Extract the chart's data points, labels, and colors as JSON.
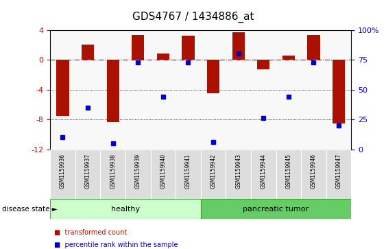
{
  "title": "GDS4767 / 1434886_at",
  "samples": [
    "GSM1159936",
    "GSM1159937",
    "GSM1159938",
    "GSM1159939",
    "GSM1159940",
    "GSM1159941",
    "GSM1159942",
    "GSM1159943",
    "GSM1159944",
    "GSM1159945",
    "GSM1159946",
    "GSM1159947"
  ],
  "bar_values": [
    -7.5,
    2.0,
    -8.3,
    3.3,
    0.8,
    3.2,
    -4.5,
    3.7,
    -1.3,
    0.6,
    3.3,
    -8.5
  ],
  "dot_values": [
    10,
    35,
    5,
    73,
    44,
    73,
    6,
    80,
    26,
    44,
    73,
    20
  ],
  "healthy_count": 6,
  "tumor_count": 6,
  "ylim_left": [
    -12,
    4
  ],
  "ylim_right": [
    0,
    100
  ],
  "yticks_left": [
    -12,
    -8,
    -4,
    0,
    4
  ],
  "yticks_right": [
    0,
    25,
    50,
    75,
    100
  ],
  "bar_color": "#AA1100",
  "dot_color": "#0000CC",
  "hline_color": "#AA1100",
  "grid_color": "#000000",
  "tick_label_area_color": "#DDDDDD",
  "healthy_color_light": "#CCFFCC",
  "tumor_color_dark": "#66CC66",
  "disease_state_label": "disease state",
  "healthy_label": "healthy",
  "tumor_label": "pancreatic tumor",
  "legend_bar_label": "transformed count",
  "legend_dot_label": "percentile rank within the sample"
}
